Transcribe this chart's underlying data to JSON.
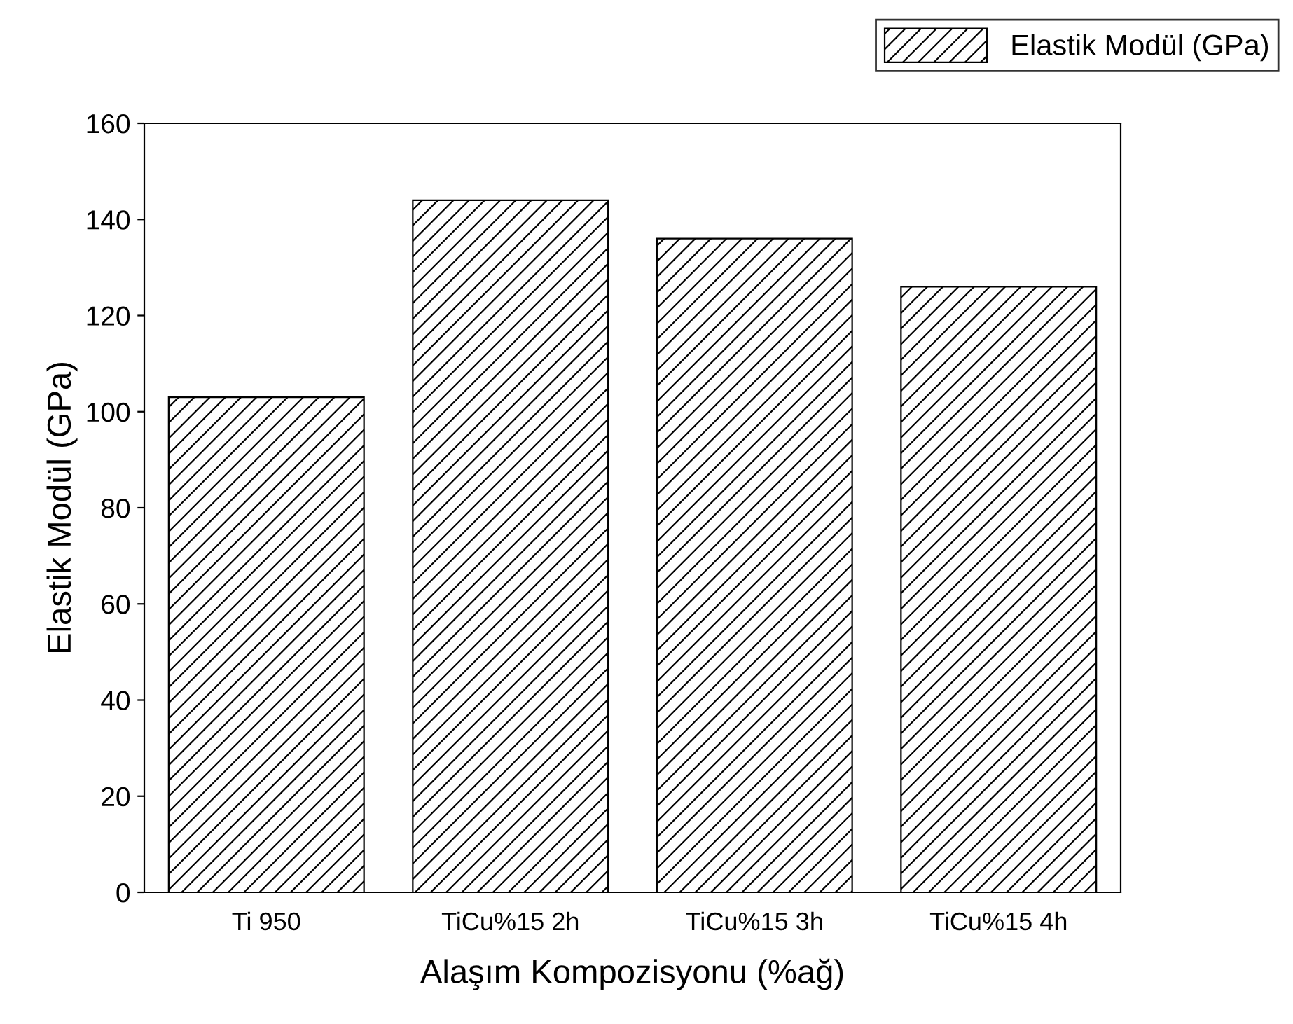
{
  "chart_data": {
    "type": "bar",
    "xlabel": "Alaşım Kompozisyonu (%ağ)",
    "ylabel": "Elastik Modül (GPa)",
    "categories": [
      "Ti 950",
      "TiCu%15 2h",
      "TiCu%15 3h",
      "TiCu%15 4h"
    ],
    "series": [
      {
        "name": "Elastik Modül (GPa)",
        "color": "#000000",
        "values": [
          103,
          144,
          136,
          126
        ]
      }
    ],
    "ylim": [
      0,
      160
    ],
    "yticks": [
      0,
      20,
      40,
      60,
      80,
      100,
      120,
      140,
      160
    ],
    "grid": false,
    "legend": "top right"
  }
}
